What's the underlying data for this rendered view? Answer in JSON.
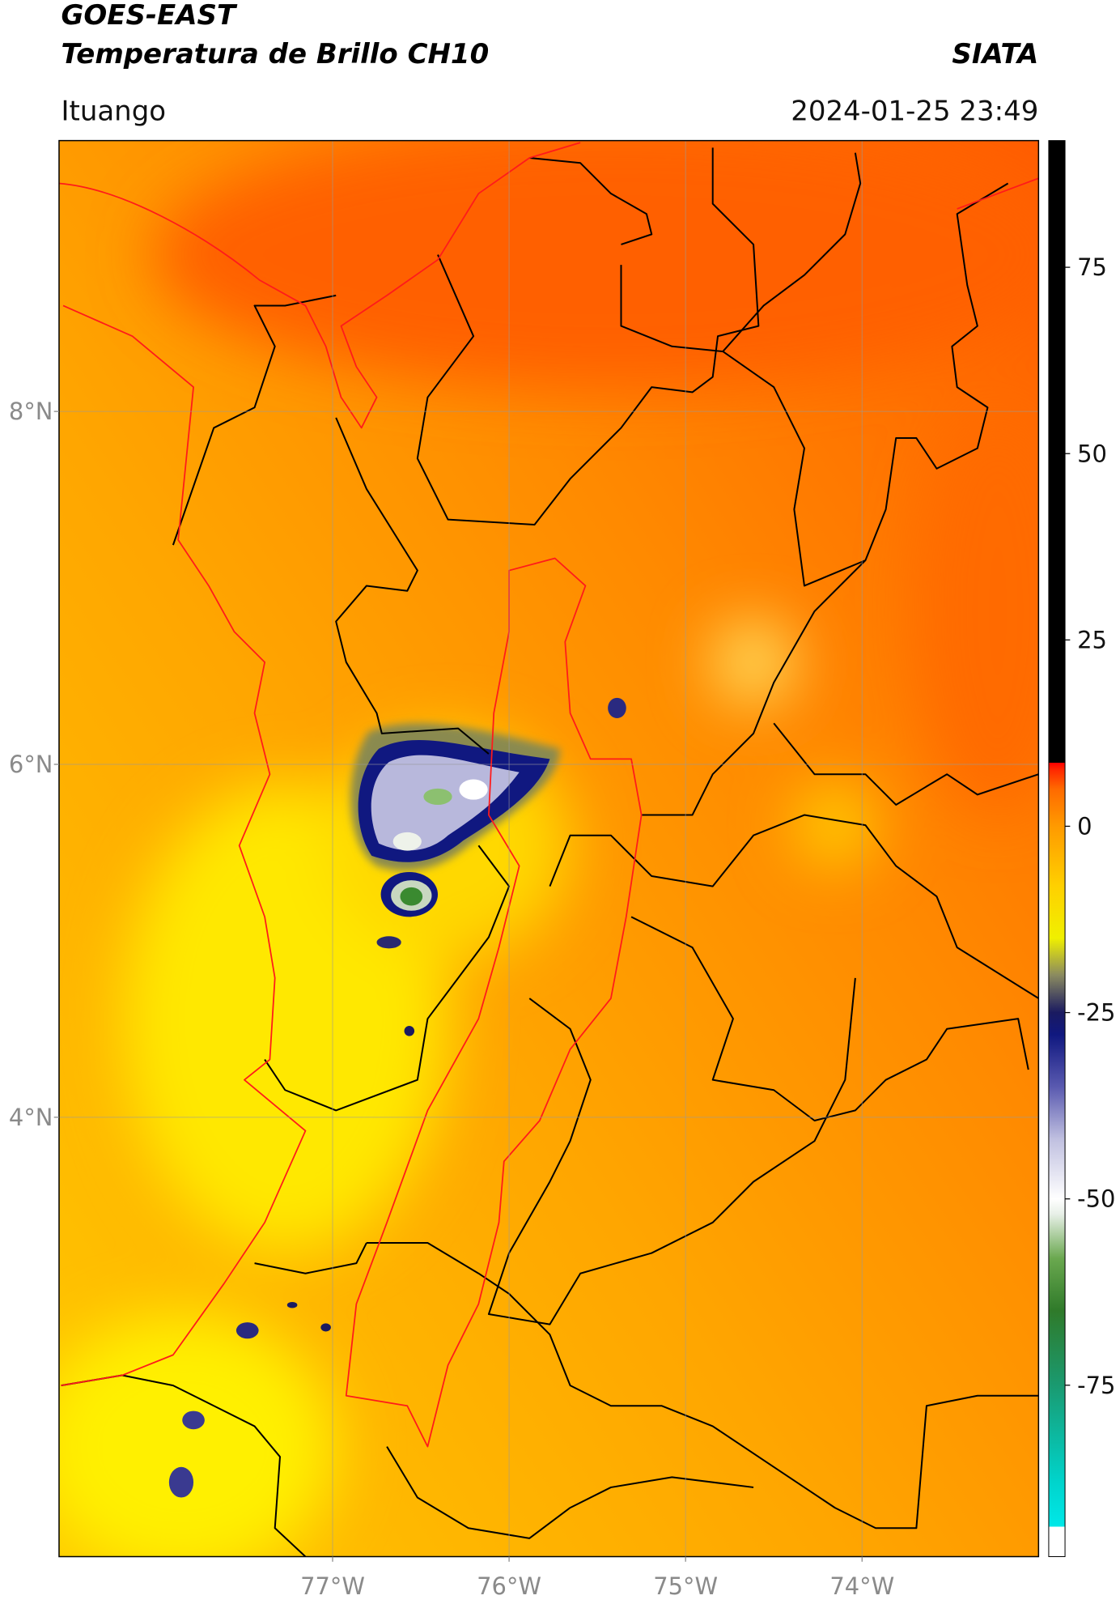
{
  "header": {
    "title": "GOES-EAST",
    "subtitle": "Temperatura de Brillo CH10",
    "source": "SIATA",
    "location": "Ituango",
    "datetime": "2024-01-25 23:49"
  },
  "map": {
    "xlim": [
      -78.55,
      -73.0
    ],
    "ylim": [
      1.51,
      9.535
    ],
    "xticks": [
      {
        "value": -77,
        "label": "77°W"
      },
      {
        "value": -76,
        "label": "76°W"
      },
      {
        "value": -75,
        "label": "75°W"
      },
      {
        "value": -74,
        "label": "74°W"
      }
    ],
    "yticks": [
      {
        "value": 8,
        "label": "8°N"
      },
      {
        "value": 6,
        "label": "6°N"
      },
      {
        "value": 4,
        "label": "4°N"
      }
    ],
    "grid": true
  },
  "colorbar": {
    "lim": [
      -98,
      92
    ],
    "ticks": [
      75,
      50,
      25,
      0,
      -25,
      -50,
      -75
    ],
    "stops": [
      {
        "value": -98,
        "color": "#ffffff"
      },
      {
        "value": -94,
        "color": "#ffffff"
      },
      {
        "value": -94,
        "color": "#00e8e8"
      },
      {
        "value": -88,
        "color": "#00d4cc"
      },
      {
        "value": -75,
        "color": "#1a9a70"
      },
      {
        "value": -65,
        "color": "#2f7a2a"
      },
      {
        "value": -58,
        "color": "#6aa84f"
      },
      {
        "value": -52,
        "color": "#e8f0e8"
      },
      {
        "value": -50,
        "color": "#ffffff"
      },
      {
        "value": -42,
        "color": "#c0c0e0"
      },
      {
        "value": -35,
        "color": "#5a5ab0"
      },
      {
        "value": -28,
        "color": "#101880"
      },
      {
        "value": -25,
        "color": "#1a1a60"
      },
      {
        "value": -20,
        "color": "#8a8a60"
      },
      {
        "value": -15,
        "color": "#f0f000"
      },
      {
        "value": -8,
        "color": "#ffd000"
      },
      {
        "value": 0,
        "color": "#ff9a00"
      },
      {
        "value": 5,
        "color": "#ff6a00"
      },
      {
        "value": 7.5,
        "color": "#ff2a00"
      },
      {
        "value": 8.5,
        "color": "#ff0000"
      },
      {
        "value": 8.5,
        "color": "#000000"
      },
      {
        "value": 92,
        "color": "#000000"
      }
    ]
  }
}
